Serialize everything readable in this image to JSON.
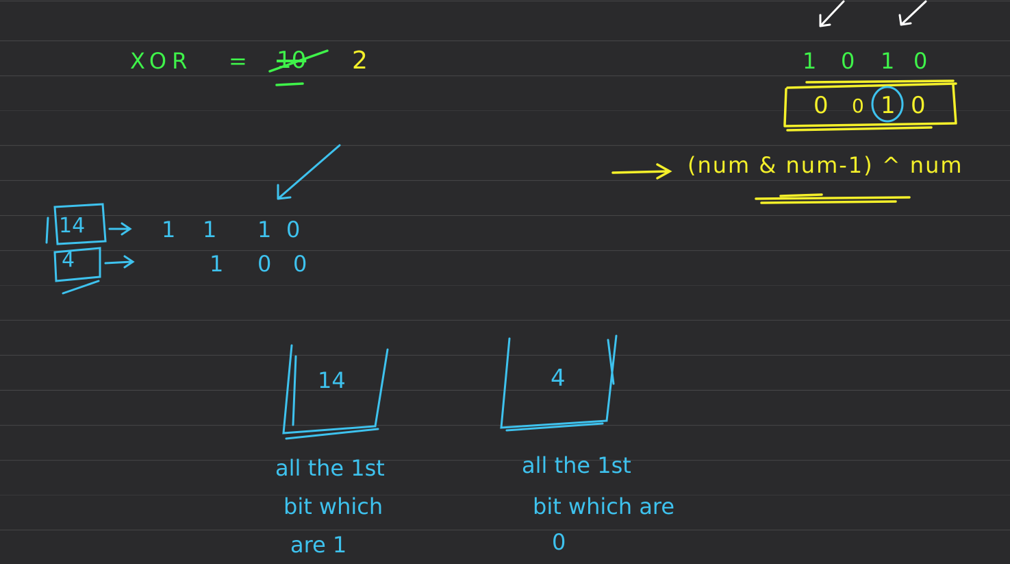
{
  "xor_line": {
    "label": "XOR",
    "equals": "=",
    "old_value": "10",
    "new_value": "2"
  },
  "top_right": {
    "bits_top": [
      "1",
      "0",
      "1",
      "0"
    ],
    "bits_boxed": [
      "0",
      "0",
      "1",
      "0"
    ],
    "formula": "(num & num-1) ^ num"
  },
  "left_rows": [
    {
      "number": "14",
      "bits": [
        "1",
        "1",
        "1",
        "0"
      ]
    },
    {
      "number": "4",
      "bits": [
        "1",
        "0",
        "0"
      ]
    }
  ],
  "buckets": [
    {
      "value": "14",
      "caption": [
        "all the 1st",
        "bit which",
        "are 1"
      ]
    },
    {
      "value": "4",
      "caption": [
        "all the 1st",
        "bit which are",
        "0"
      ]
    }
  ],
  "colors": {
    "background": "#2a2a2c",
    "green": "#3ff24a",
    "yellow": "#f4f02a",
    "blue": "#3ec2ee"
  }
}
